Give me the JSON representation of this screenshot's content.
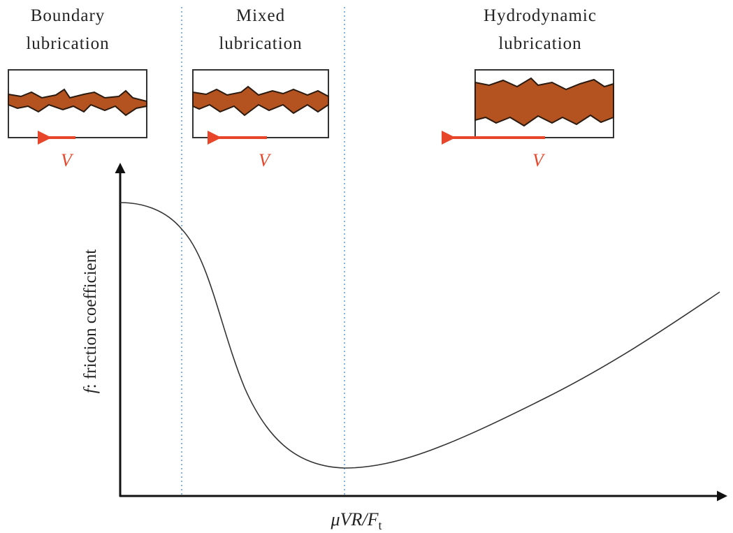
{
  "regions": [
    {
      "label_lines": [
        "Boundary",
        "lubrication"
      ],
      "velocity_label": "V"
    },
    {
      "label_lines": [
        "Mixed",
        "lubrication"
      ],
      "velocity_label": "V"
    },
    {
      "label_lines": [
        "Hydrodynamic",
        "lubrication"
      ],
      "velocity_label": "V"
    }
  ],
  "axes": {
    "x_label": {
      "main": "μVR/F",
      "subscript": "t"
    },
    "y_label": {
      "symbol": "f",
      "text": ": friction coefficient"
    }
  }
}
